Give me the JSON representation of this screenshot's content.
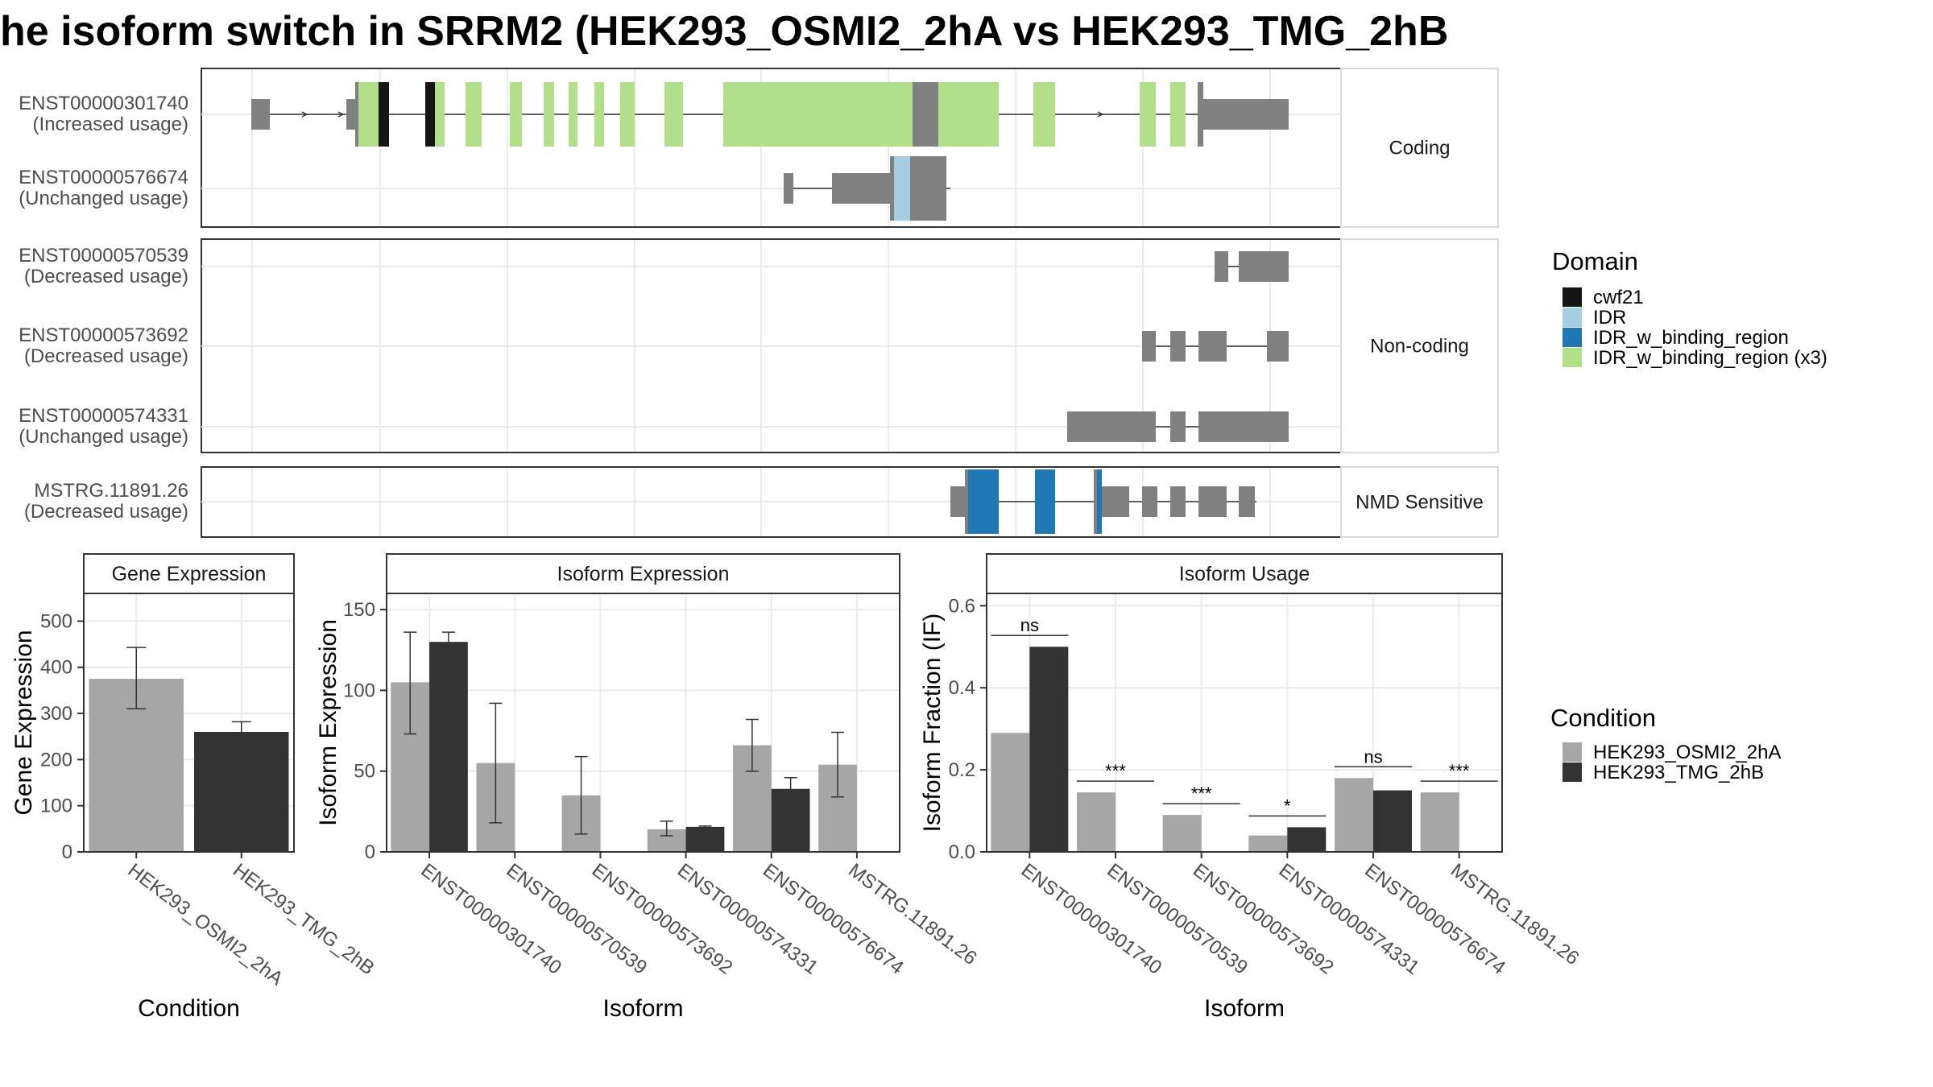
{
  "title": "he isoform switch in SRRM2 (HEK293_OSMI2_2hA vs HEK293_TMG_2hB",
  "colors": {
    "cwf21": "#151515",
    "IDR": "#a6cee3",
    "IDR_w_binding_region": "#1f78b4",
    "IDR_w_binding_region (x3)": "#b2df8a",
    "exon": "#808080",
    "condA": "#a6a6a6",
    "condB": "#333333"
  },
  "structure": {
    "facets": [
      "Coding",
      "Non-coding",
      "NMD Sensitive"
    ],
    "legend_title": "Domain",
    "legend_items": [
      "cwf21",
      "IDR",
      "IDR_w_binding_region",
      "IDR_w_binding_region (x3)"
    ],
    "transcripts": [
      {
        "id": "ENST00000301740",
        "usage": "(Increased usage)",
        "facet": "Coding"
      },
      {
        "id": "ENST00000576674",
        "usage": "(Unchanged usage)",
        "facet": "Coding"
      },
      {
        "id": "ENST00000570539",
        "usage": "(Decreased usage)",
        "facet": "Non-coding"
      },
      {
        "id": "ENST00000573692",
        "usage": "(Decreased usage)",
        "facet": "Non-coding"
      },
      {
        "id": "ENST00000574331",
        "usage": "(Unchanged usage)",
        "facet": "Non-coding"
      },
      {
        "id": "MSTRG.11891.26",
        "usage": "(Decreased usage)",
        "facet": "NMD Sensitive"
      }
    ]
  },
  "condition_legend": {
    "title": "Condition",
    "items": [
      "HEK293_OSMI2_2hA",
      "HEK293_TMG_2hB"
    ]
  },
  "chart_data": [
    {
      "type": "bar",
      "title": "Gene Expression",
      "xlabel": "Condition",
      "ylabel": "Gene Expression",
      "ylim": [
        0,
        560
      ],
      "yticks": [
        0,
        100,
        200,
        300,
        400,
        500
      ],
      "categories": [
        "HEK293_OSMI2_2hA",
        "HEK293_TMG_2hB"
      ],
      "values": [
        375,
        260
      ],
      "errors": [
        [
          310,
          443
        ],
        [
          238,
          282
        ]
      ]
    },
    {
      "type": "bar",
      "title": "Isoform Expression",
      "xlabel": "Isoform",
      "ylabel": "Isoform Expression",
      "ylim": [
        0,
        160
      ],
      "yticks": [
        0,
        50,
        100,
        150
      ],
      "categories": [
        "ENST00000301740",
        "ENST00000570539",
        "ENST00000573692",
        "ENST00000574331",
        "ENST00000576674",
        "MSTRG.11891.26"
      ],
      "series": [
        {
          "name": "HEK293_OSMI2_2hA",
          "values": [
            105,
            55,
            35,
            14,
            66,
            54
          ],
          "errors": [
            [
              73,
              136
            ],
            [
              18,
              92
            ],
            [
              11,
              59
            ],
            [
              10,
              19
            ],
            [
              50,
              82
            ],
            [
              34,
              74
            ]
          ]
        },
        {
          "name": "HEK293_TMG_2hB",
          "values": [
            130,
            0,
            0,
            15.5,
            39,
            0
          ],
          "errors": [
            [
              124,
              136
            ],
            [
              0,
              0
            ],
            [
              0,
              0
            ],
            [
              15,
              16
            ],
            [
              32,
              46
            ],
            [
              0,
              0
            ]
          ]
        }
      ]
    },
    {
      "type": "bar",
      "title": "Isoform Usage",
      "xlabel": "Isoform",
      "ylabel": "Isoform Fraction (IF)",
      "ylim": [
        0,
        0.63
      ],
      "yticks": [
        0.0,
        0.2,
        0.4,
        0.6
      ],
      "ytick_labels": [
        "0.0",
        "0.2",
        "0.4",
        "0.6"
      ],
      "categories": [
        "ENST00000301740",
        "ENST00000570539",
        "ENST00000573692",
        "ENST00000574331",
        "ENST00000576674",
        "MSTRG.11891.26"
      ],
      "series": [
        {
          "name": "HEK293_OSMI2_2hA",
          "values": [
            0.29,
            0.145,
            0.09,
            0.04,
            0.18,
            0.145
          ]
        },
        {
          "name": "HEK293_TMG_2hB",
          "values": [
            0.5,
            0.0,
            0.0,
            0.06,
            0.15,
            0.0
          ]
        }
      ],
      "significance": [
        "ns",
        "***",
        "***",
        "*",
        "ns",
        "***"
      ]
    }
  ]
}
